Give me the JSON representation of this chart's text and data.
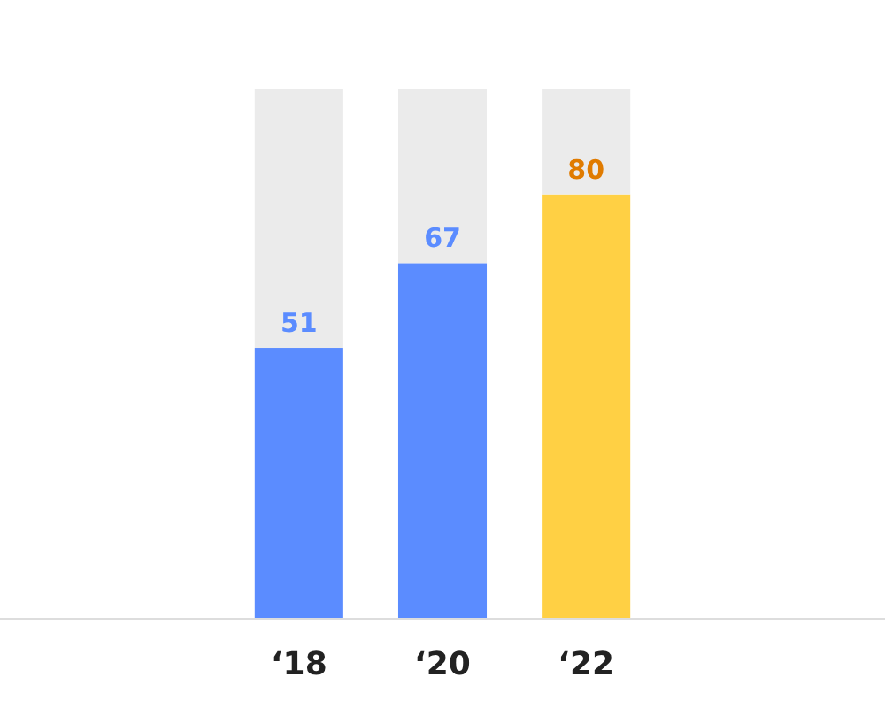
{
  "chart_data": {
    "type": "bar",
    "stacked": true,
    "categories": [
      "‘18",
      "‘20",
      "‘22"
    ],
    "ylim": [
      0,
      100
    ],
    "tick_labels": "x",
    "series": [
      {
        "colors": [
          "#5b8cff",
          "#5b8cff",
          "#ffd044"
        ],
        "values": [
          51,
          67,
          80
        ],
        "value_labels": [
          "51",
          "67",
          "80"
        ]
      },
      {
        "color": "#ebebeb",
        "values": [
          49,
          33,
          20
        ]
      }
    ]
  }
}
